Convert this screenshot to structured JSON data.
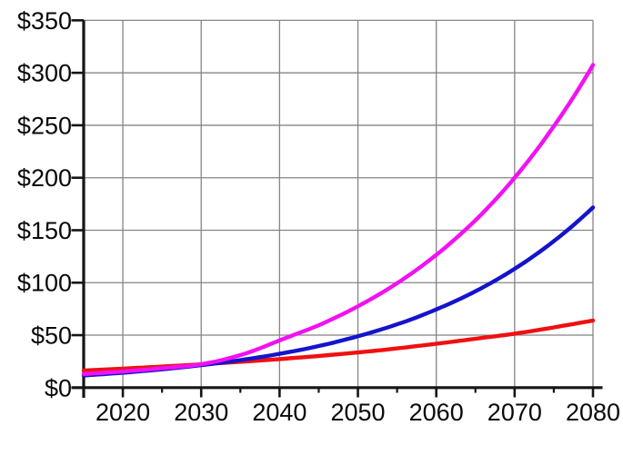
{
  "colors": {
    "background": "#ffffff",
    "grid": "#858585",
    "axis": "#151515",
    "tick": "#151515",
    "label_text": "#0a0a0a",
    "series_red": "#ee1111",
    "series_blue": "#1414cd",
    "series_magenta": "#f211f2"
  },
  "chart_data": {
    "type": "line",
    "title": "",
    "xlabel": "",
    "ylabel": "",
    "grid": true,
    "legend": "none",
    "x_axis": {
      "range": [
        2015,
        2080
      ],
      "major_ticks": [
        {
          "year": 2015,
          "label": ""
        },
        {
          "year": 2020,
          "label": "2020"
        },
        {
          "year": 2030,
          "label": "2030"
        },
        {
          "year": 2040,
          "label": "2040"
        },
        {
          "year": 2050,
          "label": "2050"
        },
        {
          "year": 2060,
          "label": "2060"
        },
        {
          "year": 2070,
          "label": "2070"
        },
        {
          "year": 2080,
          "label": "2080"
        }
      ],
      "minor_ticks": [
        2025,
        2035,
        2045,
        2055,
        2065,
        2075
      ],
      "gridline_years": [
        2020,
        2030,
        2040,
        2050,
        2060,
        2070,
        2080
      ]
    },
    "y_axis": {
      "range": [
        0,
        350
      ],
      "ticks": [
        0,
        50,
        100,
        150,
        200,
        250,
        300,
        350
      ],
      "tick_labels": [
        "$0",
        "$50",
        "$100",
        "$150",
        "$200",
        "$250",
        "$300",
        "$350"
      ],
      "gridline_values": [
        50,
        100,
        150,
        200,
        250,
        300,
        350
      ]
    },
    "x": [
      2015,
      2020,
      2025,
      2030,
      2035,
      2040,
      2045,
      2050,
      2055,
      2060,
      2065,
      2070,
      2075,
      2080
    ],
    "series": [
      {
        "name": "red-series",
        "color_key": "series_red",
        "values": [
          16.3,
          18.1,
          20.1,
          22.2,
          24.6,
          27.2,
          30.2,
          33.5,
          37.4,
          41.8,
          46.6,
          51.4,
          57.4,
          64.0
        ]
      },
      {
        "name": "blue-series",
        "color_key": "series_blue",
        "values": [
          11.6,
          14.2,
          17.4,
          21.4,
          26.2,
          32.2,
          39.6,
          49.0,
          60.3,
          74.5,
          91.8,
          113.2,
          139.6,
          171.7
        ]
      },
      {
        "name": "magenta-series",
        "color_key": "series_magenta",
        "values": [
          13.0,
          15.4,
          18.5,
          22.3,
          31.0,
          45.0,
          59.5,
          77.5,
          99.5,
          126.5,
          159.5,
          200.0,
          249.0,
          307.5
        ]
      }
    ]
  }
}
